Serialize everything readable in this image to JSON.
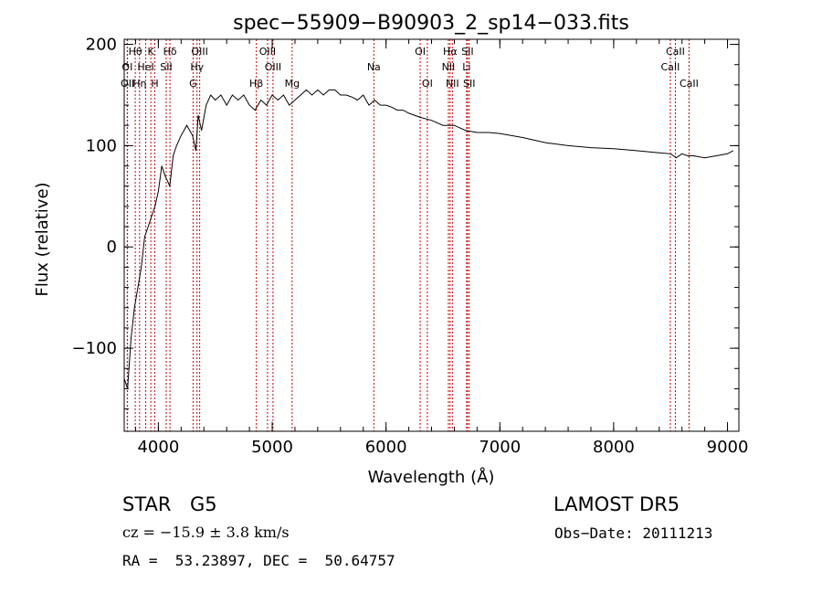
{
  "chart_data": {
    "type": "line",
    "title": "spec−55909−B90903_2_sp14−033.fits",
    "xlabel": "Wavelength (Å)",
    "ylabel": "Flux (relative)",
    "xlim": [
      3700,
      9100
    ],
    "ylim": [
      -182,
      205
    ],
    "x_ticks": [
      {
        "value": 4000,
        "label": "4000"
      },
      {
        "value": 5000,
        "label": "5000"
      },
      {
        "value": 6000,
        "label": "6000"
      },
      {
        "value": 7000,
        "label": "7000"
      },
      {
        "value": 8000,
        "label": "8000"
      },
      {
        "value": 9000,
        "label": "9000"
      }
    ],
    "y_ticks": [
      {
        "value": -100,
        "label": "−100"
      },
      {
        "value": 0,
        "label": "0"
      },
      {
        "value": 100,
        "label": "100"
      },
      {
        "value": 200,
        "label": "200"
      }
    ],
    "line_color": "#000000",
    "marker_color": "#cc0000",
    "lines": [
      {
        "label": "Hθ",
        "x": 3797,
        "row": 0
      },
      {
        "label": "K",
        "x": 3934,
        "row": 0
      },
      {
        "label": "Hδ",
        "x": 4102,
        "row": 0
      },
      {
        "label": "OIII",
        "x": 4363,
        "row": 0
      },
      {
        "label": "OIII",
        "x": 4959,
        "row": 0
      },
      {
        "label": "OI",
        "x": 6300,
        "row": 0
      },
      {
        "label": "Hα",
        "x": 6563,
        "row": 0
      },
      {
        "label": "SII",
        "x": 6716,
        "row": 0
      },
      {
        "label": "CaII",
        "x": 8542,
        "row": 0
      },
      {
        "label": "OI",
        "x": 3727,
        "row": 1
      },
      {
        "label": "HeI",
        "x": 3889,
        "row": 1
      },
      {
        "label": "SII",
        "x": 4069,
        "row": 1
      },
      {
        "label": "Hγ",
        "x": 4340,
        "row": 1
      },
      {
        "label": "OIII",
        "x": 5007,
        "row": 1
      },
      {
        "label": "Na",
        "x": 5893,
        "row": 1
      },
      {
        "label": "NII",
        "x": 6548,
        "row": 1
      },
      {
        "label": "Li",
        "x": 6708,
        "row": 1
      },
      {
        "label": "CaII",
        "x": 8498,
        "row": 1
      },
      {
        "label": "OII",
        "x": 3729,
        "row": 2
      },
      {
        "label": "Hη",
        "x": 3835,
        "row": 2
      },
      {
        "label": "H",
        "x": 3969,
        "row": 2
      },
      {
        "label": "G",
        "x": 4305,
        "row": 2
      },
      {
        "label": "Hβ",
        "x": 4861,
        "row": 2
      },
      {
        "label": "Mg",
        "x": 5175,
        "row": 2
      },
      {
        "label": "OI",
        "x": 6363,
        "row": 2
      },
      {
        "label": "NII",
        "x": 6583,
        "row": 2
      },
      {
        "label": "SII",
        "x": 6731,
        "row": 2
      },
      {
        "label": "CaII",
        "x": 8662,
        "row": 2
      }
    ],
    "series": [
      {
        "x": [
          3700,
          3730,
          3760,
          3790,
          3820,
          3850,
          3880,
          3910,
          3940,
          3970,
          4000,
          4030,
          4060,
          4100,
          4130,
          4160,
          4200,
          4250,
          4300,
          4330,
          4350,
          4380,
          4420,
          4460,
          4500,
          4550,
          4600,
          4650,
          4700,
          4750,
          4800,
          4850,
          4900,
          4950,
          5000,
          5050,
          5100,
          5150,
          5200,
          5250,
          5300,
          5350,
          5400,
          5450,
          5500,
          5550,
          5600,
          5650,
          5700,
          5750,
          5800,
          5850,
          5900,
          5950,
          6000,
          6050,
          6100,
          6150,
          6200,
          6250,
          6300,
          6400,
          6500,
          6600,
          6700,
          6800,
          6900,
          7000,
          7200,
          7400,
          7600,
          7800,
          8000,
          8200,
          8400,
          8500,
          8550,
          8600,
          8650,
          8700,
          8800,
          8900,
          9000,
          9050
        ],
        "y": [
          -130,
          -140,
          -90,
          -60,
          -40,
          -20,
          10,
          20,
          30,
          40,
          55,
          80,
          70,
          60,
          90,
          100,
          110,
          120,
          110,
          95,
          130,
          115,
          140,
          150,
          145,
          150,
          140,
          150,
          145,
          150,
          140,
          135,
          145,
          140,
          150,
          145,
          150,
          140,
          145,
          150,
          155,
          150,
          155,
          150,
          155,
          155,
          150,
          150,
          148,
          145,
          150,
          140,
          145,
          140,
          140,
          138,
          135,
          135,
          132,
          130,
          128,
          125,
          120,
          120,
          115,
          113,
          113,
          112,
          108,
          103,
          100,
          98,
          97,
          95,
          93,
          92,
          88,
          92,
          90,
          90,
          88,
          90,
          92,
          95
        ]
      }
    ]
  },
  "info": {
    "object_class": "STAR",
    "subclass": "G5",
    "survey": "LAMOST DR5",
    "cz": "cz = −15.9 ± 3.8 km/s",
    "obs_date": "Obs−Date: 20111213",
    "coords": "RA =  53.23897, DEC =  50.64757"
  }
}
